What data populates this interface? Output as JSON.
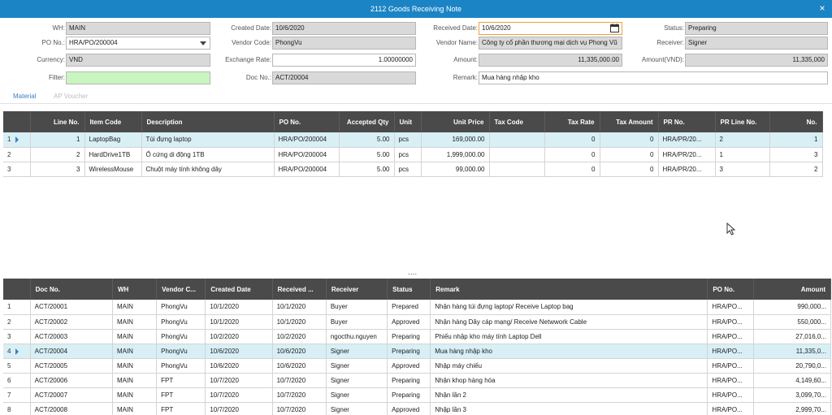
{
  "window": {
    "title": "2112 Goods Receiving Note",
    "close_glyph": "×"
  },
  "form": {
    "wh": {
      "label": "WH:",
      "value": "MAIN"
    },
    "po_no": {
      "label": "PO No.:",
      "value": "HRA/PO/200004"
    },
    "currency": {
      "label": "Currency:",
      "value": "VND"
    },
    "filter": {
      "label": "Filter:",
      "value": ""
    },
    "created_date": {
      "label": "Created Date:",
      "value": "10/6/2020"
    },
    "vendor_code": {
      "label": "Vendor Code:",
      "value": "PhongVu"
    },
    "exchange_rate": {
      "label": "Exchange Rate:",
      "value": "1.00000000"
    },
    "doc_no": {
      "label": "Doc No.:",
      "value": "ACT/20004"
    },
    "received_date": {
      "label": "Received Date:",
      "value": "10/6/2020"
    },
    "vendor_name": {
      "label": "Vendor Name:",
      "value": "Công ty cổ phần thương mại dịch vụ Phong Vũ"
    },
    "amount": {
      "label": "Amount:",
      "value": "11,335,000.00"
    },
    "remark": {
      "label": "Remark:",
      "value": "Mua hàng nhập kho"
    },
    "status": {
      "label": "Status:",
      "value": "Preparing"
    },
    "receiver": {
      "label": "Receiver:",
      "value": "Signer"
    },
    "amount_vnd": {
      "label": "Amount(VND):",
      "value": "11,335,000"
    }
  },
  "tabs": [
    {
      "label": "Material"
    },
    {
      "label": "AP Voucher"
    }
  ],
  "detail_table": {
    "columns": [
      "Line No.",
      "Item Code",
      "Description",
      "PO No.",
      "Accepted Qty",
      "Unit",
      "Unit Price",
      "Tax Code",
      "Tax Rate",
      "Tax Amount",
      "PR No.",
      "PR Line No.",
      "No."
    ],
    "rows": [
      {
        "idx": "1",
        "line_no": "1",
        "item_code": "LaptopBag",
        "description": "Túi đựng laptop",
        "po_no": "HRA/PO/200004",
        "qty": "5.00",
        "unit": "pcs",
        "unit_price": "169,000.00",
        "tax_code": "",
        "tax_rate": "0",
        "tax_amount": "0",
        "pr_no": "HRA/PR/20...",
        "pr_line": "2",
        "no": "1"
      },
      {
        "idx": "2",
        "line_no": "2",
        "item_code": "HardDrive1TB",
        "description": "Ổ cứng  di động 1TB",
        "po_no": "HRA/PO/200004",
        "qty": "5.00",
        "unit": "pcs",
        "unit_price": "1,999,000.00",
        "tax_code": "",
        "tax_rate": "0",
        "tax_amount": "0",
        "pr_no": "HRA/PR/20...",
        "pr_line": "1",
        "no": "3"
      },
      {
        "idx": "3",
        "line_no": "3",
        "item_code": "WirelessMouse",
        "description": "Chuột máy tính không dây",
        "po_no": "HRA/PO/200004",
        "qty": "5.00",
        "unit": "pcs",
        "unit_price": "99,000.00",
        "tax_code": "",
        "tax_rate": "0",
        "tax_amount": "0",
        "pr_no": "HRA/PR/20...",
        "pr_line": "3",
        "no": "2"
      }
    ]
  },
  "splitter": "....",
  "list_table": {
    "columns": [
      "Doc No.",
      "WH",
      "Vendor C...",
      "Created Date",
      "Received ...",
      "Receiver",
      "Status",
      "Remark",
      "PO No.",
      "Amount"
    ],
    "rows": [
      {
        "idx": "1",
        "doc_no": "ACT/20001",
        "wh": "MAIN",
        "vendor": "PhongVu",
        "created": "10/1/2020",
        "received": "10/1/2020",
        "receiver": "Buyer",
        "status": "Prepared",
        "remark": "Nhận hàng túi đựng laptop/ Receive Laptop bag",
        "po_no": "HRA/PO...",
        "amount": "990,000..."
      },
      {
        "idx": "2",
        "doc_no": "ACT/20002",
        "wh": "MAIN",
        "vendor": "PhongVu",
        "created": "10/1/2020",
        "received": "10/1/2020",
        "receiver": "Buyer",
        "status": "Approved",
        "remark": "Nhận hàng Dây cáp mạng/ Receive Netwwork Cable",
        "po_no": "HRA/PO...",
        "amount": "550,000..."
      },
      {
        "idx": "3",
        "doc_no": "ACT/20003",
        "wh": "MAIN",
        "vendor": "PhongVu",
        "created": "10/2/2020",
        "received": "10/2/2020",
        "receiver": "ngocthu.nguyen",
        "status": "Preparing",
        "remark": "Phiếu nhập kho máy tính Laptop Dell",
        "po_no": "HRA/PO...",
        "amount": "27,016,0..."
      },
      {
        "idx": "4",
        "doc_no": "ACT/20004",
        "wh": "MAIN",
        "vendor": "PhongVu",
        "created": "10/6/2020",
        "received": "10/6/2020",
        "receiver": "Signer",
        "status": "Preparing",
        "remark": "Mua hàng nhập kho",
        "po_no": "HRA/PO...",
        "amount": "11,335,0..."
      },
      {
        "idx": "5",
        "doc_no": "ACT/20005",
        "wh": "MAIN",
        "vendor": "PhongVu",
        "created": "10/6/2020",
        "received": "10/6/2020",
        "receiver": "Signer",
        "status": "Approved",
        "remark": "Nhập máy chiếu",
        "po_no": "HRA/PO...",
        "amount": "20,790,0..."
      },
      {
        "idx": "6",
        "doc_no": "ACT/20006",
        "wh": "MAIN",
        "vendor": "FPT",
        "created": "10/7/2020",
        "received": "10/7/2020",
        "receiver": "Signer",
        "status": "Preparing",
        "remark": "Nhận khop hàng hóa",
        "po_no": "HRA/PO...",
        "amount": "4,149,60..."
      },
      {
        "idx": "7",
        "doc_no": "ACT/20007",
        "wh": "MAIN",
        "vendor": "FPT",
        "created": "10/7/2020",
        "received": "10/7/2020",
        "receiver": "Signer",
        "status": "Preparing",
        "remark": "Nhận lần 2",
        "po_no": "HRA/PO...",
        "amount": "3,099,70..."
      },
      {
        "idx": "8",
        "doc_no": "ACT/20008",
        "wh": "MAIN",
        "vendor": "FPT",
        "created": "10/7/2020",
        "received": "10/7/2020",
        "receiver": "Signer",
        "status": "Approved",
        "remark": "Nhập lần 3",
        "po_no": "HRA/PO...",
        "amount": "2,999,70..."
      }
    ]
  },
  "colors": {
    "titlebar": "#1b84c5",
    "header_bg": "#4a4a4a",
    "selected_row": "#d8eff5",
    "filter_bg": "#c8f5c0",
    "accent": "#3b7fc0"
  }
}
